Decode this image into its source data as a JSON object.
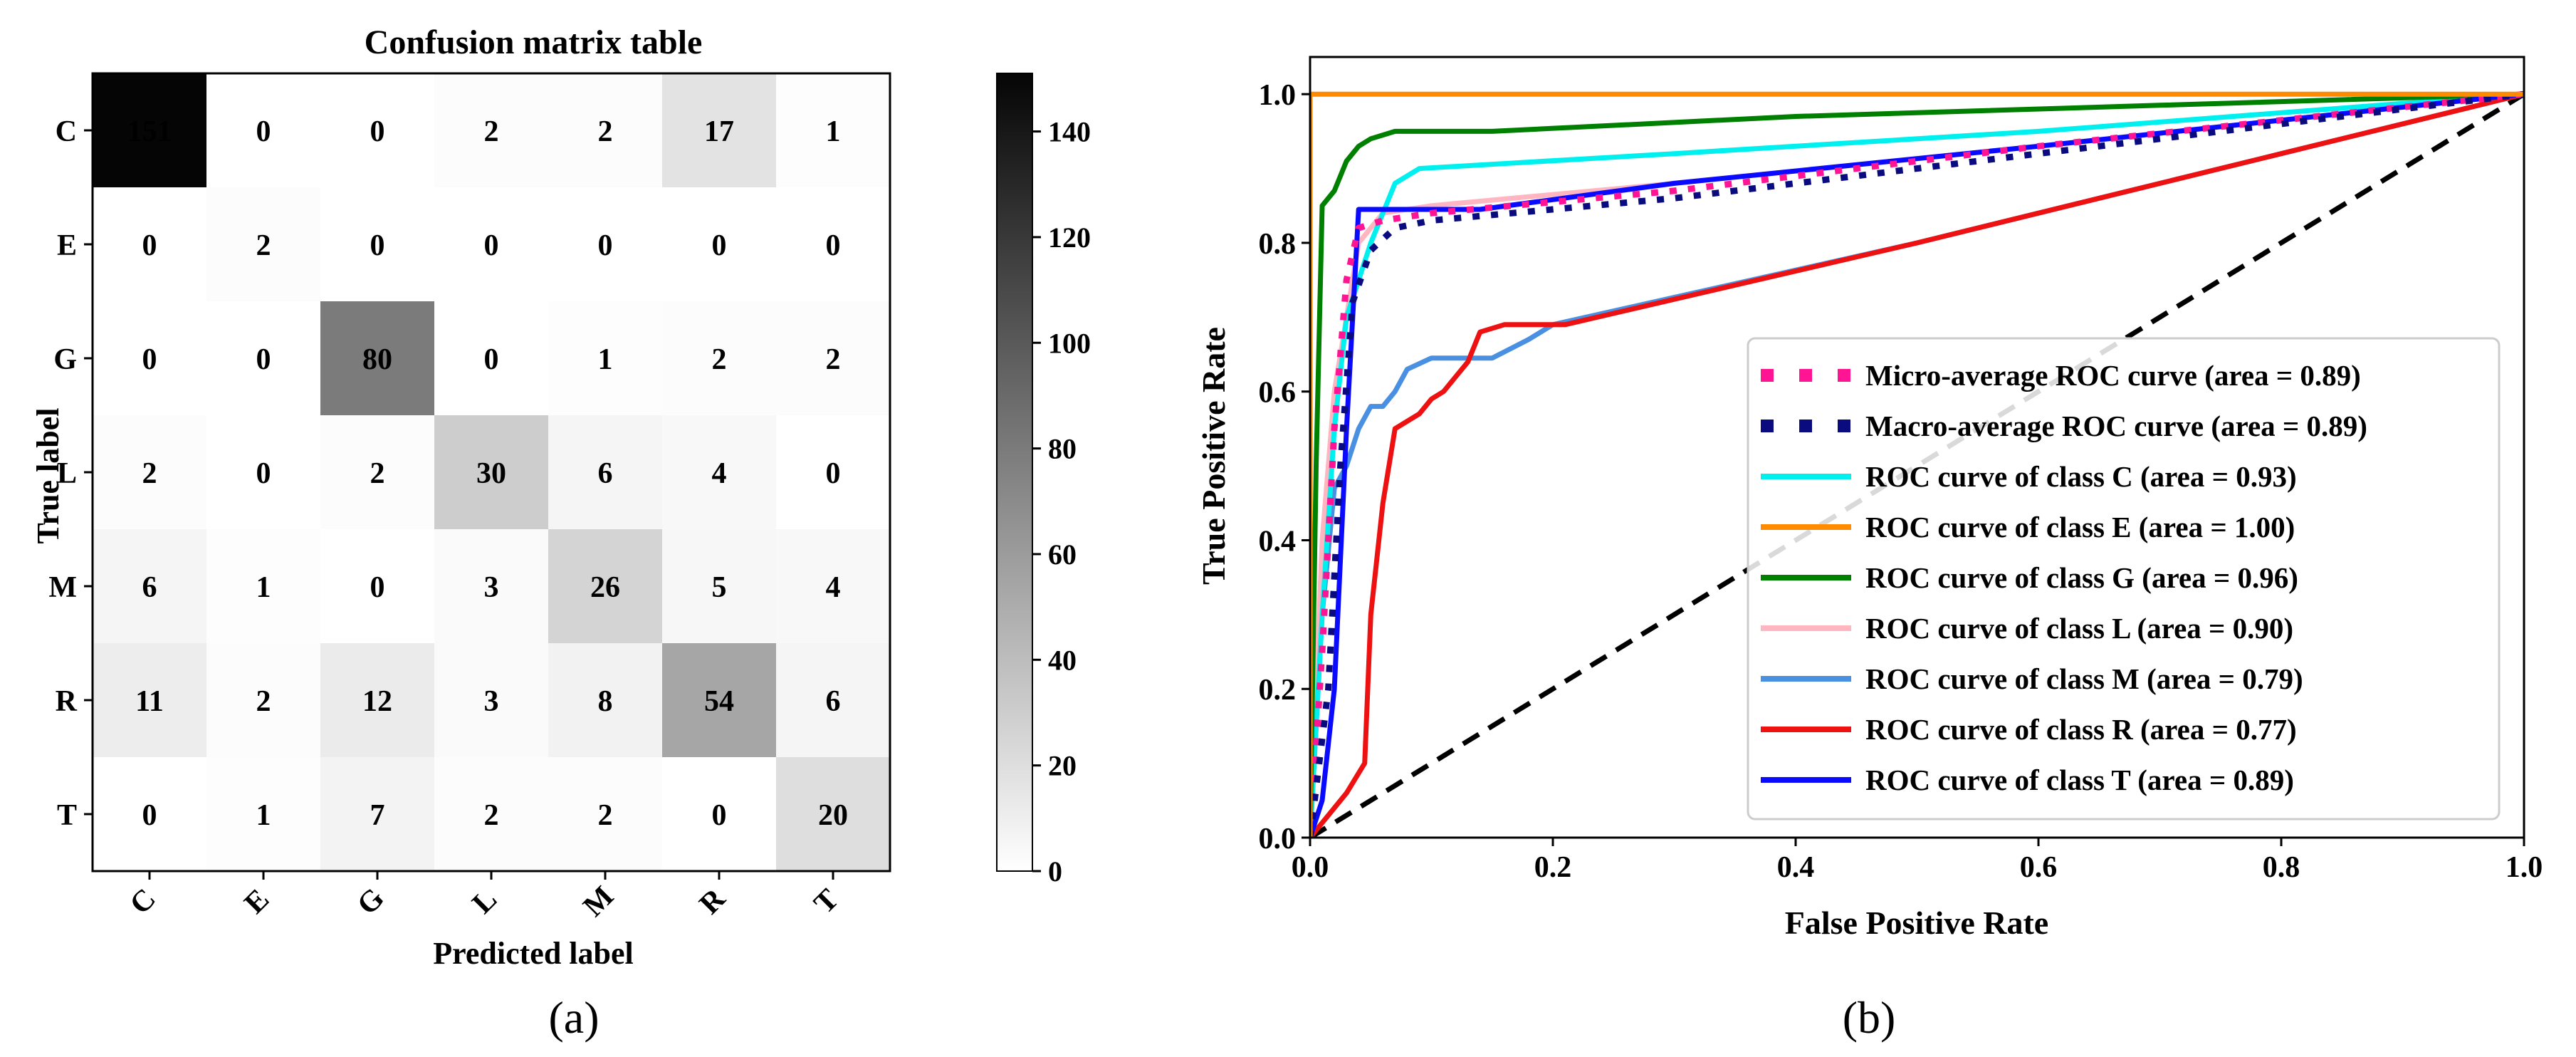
{
  "panels": {
    "a_label": "(a)",
    "b_label": "(b)"
  },
  "chart_data": [
    {
      "type": "heatmap",
      "title": "Confusion matrix table",
      "xlabel": "Predicted label",
      "ylabel": "True label",
      "row_labels": [
        "C",
        "E",
        "G",
        "L",
        "M",
        "R",
        "T"
      ],
      "col_labels": [
        "C",
        "E",
        "G",
        "L",
        "M",
        "R",
        "T"
      ],
      "values": [
        [
          151,
          0,
          0,
          2,
          2,
          17,
          1
        ],
        [
          0,
          2,
          0,
          0,
          0,
          0,
          0
        ],
        [
          0,
          0,
          80,
          0,
          1,
          2,
          2
        ],
        [
          2,
          0,
          2,
          30,
          6,
          4,
          0
        ],
        [
          6,
          1,
          0,
          3,
          26,
          5,
          4
        ],
        [
          11,
          2,
          12,
          3,
          8,
          54,
          6
        ],
        [
          0,
          1,
          7,
          2,
          2,
          0,
          20
        ]
      ],
      "colorbar": {
        "min": 0,
        "max": 151,
        "ticks": [
          0,
          20,
          40,
          60,
          80,
          100,
          120,
          140
        ],
        "colormap": "greys"
      }
    },
    {
      "type": "line",
      "title": "",
      "xlabel": "False Positive Rate",
      "ylabel": "True Positive Rate",
      "xlim": [
        0,
        1
      ],
      "ylim": [
        0,
        1.05
      ],
      "xticks": [
        0.0,
        0.2,
        0.4,
        0.6,
        0.8,
        1.0
      ],
      "xtick_labels": [
        "0.0",
        "0.2",
        "0.4",
        "0.6",
        "0.8",
        "1.0"
      ],
      "yticks": [
        0.0,
        0.2,
        0.4,
        0.6,
        0.8,
        1.0
      ],
      "ytick_labels": [
        "0.0",
        "0.2",
        "0.4",
        "0.6",
        "0.8",
        "1.0"
      ],
      "legend_position": "lower-right",
      "series": [
        {
          "name": "Micro-average ROC curve (area = 0.89)",
          "color": "#ff1493",
          "style": "dotted",
          "x": [
            0,
            0.01,
            0.02,
            0.03,
            0.04,
            0.06,
            0.1,
            0.3,
            0.6,
            1.0
          ],
          "y": [
            0,
            0.25,
            0.55,
            0.75,
            0.82,
            0.83,
            0.84,
            0.87,
            0.93,
            1.0
          ]
        },
        {
          "name": "Macro-average ROC curve (area = 0.89)",
          "color": "#0b0b80",
          "style": "dotted",
          "x": [
            0,
            0.015,
            0.025,
            0.035,
            0.05,
            0.07,
            0.1,
            0.3,
            0.6,
            1.0
          ],
          "y": [
            0,
            0.2,
            0.5,
            0.72,
            0.79,
            0.82,
            0.83,
            0.86,
            0.92,
            1.0
          ]
        },
        {
          "name": "ROC curve of class C (area = 0.93)",
          "color": "#00f0f0",
          "style": "solid",
          "x": [
            0,
            0.01,
            0.02,
            0.03,
            0.05,
            0.07,
            0.09,
            0.3,
            0.6,
            1.0
          ],
          "y": [
            0,
            0.3,
            0.55,
            0.7,
            0.8,
            0.88,
            0.9,
            0.92,
            0.95,
            1.0
          ]
        },
        {
          "name": "ROC curve of class E (area = 1.00)",
          "color": "#ff8c00",
          "style": "solid",
          "x": [
            0,
            0,
            0.01,
            1.0
          ],
          "y": [
            0,
            1.0,
            1.0,
            1.0
          ]
        },
        {
          "name": "ROC curve of class G (area = 0.96)",
          "color": "#008000",
          "style": "solid",
          "x": [
            0,
            0.005,
            0.01,
            0.02,
            0.03,
            0.04,
            0.05,
            0.07,
            0.15,
            0.4,
            0.7,
            1.0
          ],
          "y": [
            0,
            0.5,
            0.85,
            0.87,
            0.91,
            0.93,
            0.94,
            0.95,
            0.95,
            0.97,
            0.985,
            1.0
          ]
        },
        {
          "name": "ROC curve of class L (area = 0.90)",
          "color": "#ffb6c1",
          "style": "solid",
          "x": [
            0,
            0.01,
            0.02,
            0.03,
            0.04,
            0.06,
            0.1,
            0.3,
            0.6,
            1.0
          ],
          "y": [
            0,
            0.4,
            0.6,
            0.7,
            0.8,
            0.84,
            0.85,
            0.88,
            0.93,
            1.0
          ]
        },
        {
          "name": "ROC curve of class M (area = 0.79)",
          "color": "#4a90e2",
          "style": "solid",
          "x": [
            0,
            0.01,
            0.02,
            0.03,
            0.04,
            0.05,
            0.06,
            0.07,
            0.08,
            0.1,
            0.15,
            0.18,
            0.2,
            0.5,
            0.8,
            1.0
          ],
          "y": [
            0,
            0.3,
            0.47,
            0.5,
            0.55,
            0.58,
            0.58,
            0.6,
            0.63,
            0.645,
            0.645,
            0.67,
            0.69,
            0.8,
            0.92,
            1.0
          ]
        },
        {
          "name": "ROC curve of class R (area = 0.77)",
          "color": "#ee1111",
          "style": "solid",
          "x": [
            0,
            0.03,
            0.045,
            0.05,
            0.06,
            0.07,
            0.09,
            0.1,
            0.11,
            0.12,
            0.13,
            0.14,
            0.16,
            0.2,
            0.21,
            0.5,
            0.8,
            1.0
          ],
          "y": [
            0,
            0.06,
            0.1,
            0.3,
            0.45,
            0.55,
            0.57,
            0.59,
            0.6,
            0.62,
            0.64,
            0.68,
            0.69,
            0.69,
            0.69,
            0.8,
            0.92,
            1.0
          ]
        },
        {
          "name": "ROC curve of class T (area = 0.89)",
          "color": "#0a0aff",
          "style": "solid",
          "x": [
            0,
            0.01,
            0.02,
            0.03,
            0.04,
            0.14,
            0.3,
            0.6,
            1.0
          ],
          "y": [
            0,
            0.05,
            0.2,
            0.55,
            0.845,
            0.845,
            0.88,
            0.93,
            1.0
          ]
        },
        {
          "name": "",
          "color": "#000000",
          "style": "dashed",
          "x": [
            0,
            1
          ],
          "y": [
            0,
            1
          ]
        }
      ]
    }
  ]
}
